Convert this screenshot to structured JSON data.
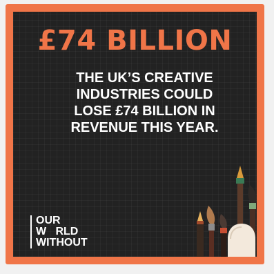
{
  "card": {
    "headline": "£74 BILLION",
    "body_lines": [
      "THE UK’S CREATIVE",
      "INDUSTRIES COULD",
      "LOSE £74 BILLION IN",
      "REVENUE THIS YEAR."
    ]
  },
  "logo": {
    "lines": [
      "OUR",
      "W   RLD",
      "WITHOUT"
    ]
  },
  "colors": {
    "accent": "#f07548",
    "background": "#222222",
    "text": "#ffffff"
  }
}
